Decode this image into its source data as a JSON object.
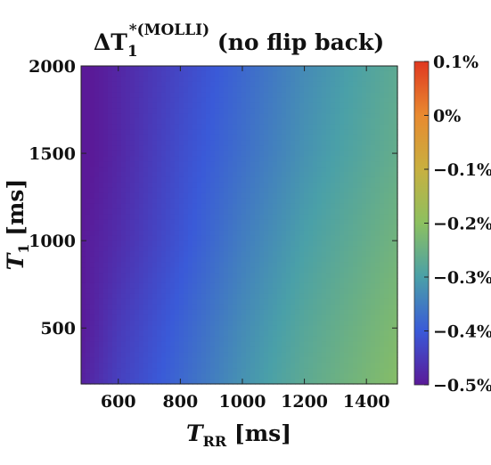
{
  "chart_data": {
    "type": "heatmap",
    "title": {
      "prefix": "ΔT",
      "sub": "1",
      "sup": "*(MOLLI)",
      "suffix": " (no flip back)"
    },
    "xlabel": {
      "main": "T",
      "sub": "RR",
      "unit": " [ms]"
    },
    "ylabel": {
      "main": "T",
      "sub": "1",
      "unit": " [ms]"
    },
    "xlim": [
      480,
      1500
    ],
    "ylim": [
      180,
      2000
    ],
    "x_ticks": [
      600,
      800,
      1000,
      1200,
      1400
    ],
    "y_ticks": [
      500,
      1000,
      1500,
      2000
    ],
    "colorbar": {
      "range": [
        -0.5,
        0.1
      ],
      "ticks": [
        {
          "value": 0.1,
          "label": "0.1%"
        },
        {
          "value": 0.0,
          "label": "0%"
        },
        {
          "value": -0.1,
          "label": "−0.1%"
        },
        {
          "value": -0.2,
          "label": "−0.2%"
        },
        {
          "value": -0.3,
          "label": "−0.3%"
        },
        {
          "value": -0.4,
          "label": "−0.4%"
        },
        {
          "value": -0.5,
          "label": "−0.5%"
        }
      ],
      "colors": [
        "#5a1a98",
        "#3a5ad8",
        "#4aa0a8",
        "#8cc060",
        "#c8b040",
        "#e88a30",
        "#e03820"
      ]
    },
    "grid": false,
    "legend": "colorbar-right",
    "field": {
      "x_samples": [
        480,
        600,
        800,
        1000,
        1200,
        1400,
        1500
      ],
      "y_samples": [
        180,
        500,
        1000,
        1500,
        2000
      ],
      "values": [
        [
          -0.49,
          -0.44,
          -0.38,
          -0.32,
          -0.27,
          -0.23,
          -0.21
        ],
        [
          -0.5,
          -0.45,
          -0.39,
          -0.33,
          -0.28,
          -0.24,
          -0.22
        ],
        [
          -0.5,
          -0.47,
          -0.41,
          -0.35,
          -0.3,
          -0.26,
          -0.24
        ],
        [
          -0.51,
          -0.48,
          -0.42,
          -0.37,
          -0.32,
          -0.28,
          -0.26
        ],
        [
          -0.51,
          -0.48,
          -0.43,
          -0.38,
          -0.33,
          -0.29,
          -0.27
        ]
      ]
    }
  }
}
